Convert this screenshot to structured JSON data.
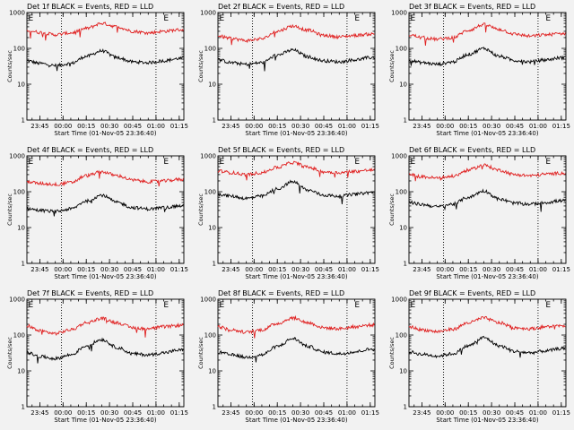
{
  "chart_data": [
    {
      "type": "line",
      "title": "Det 1f BLACK = Events, RED = LLD",
      "ylabel": "Counts/sec",
      "xlabel": "Start Time (01-Nov-05 23:36:40)",
      "yscale": "log",
      "ylim": [
        1,
        1000
      ],
      "y_ticks": [
        "1",
        "10",
        "100",
        "1000"
      ],
      "x_ticks": [
        "23:45",
        "00:00",
        "00:15",
        "00:30",
        "00:45",
        "01:00",
        "01:15"
      ],
      "x_range": [
        "23:36:40",
        "01:18:00"
      ],
      "markers": [
        {
          "label": "E",
          "time": "23:36:40"
        },
        {
          "label": "E",
          "time": "01:04:00"
        }
      ],
      "vlines": [
        "23:59:00",
        "01:00:00"
      ],
      "series": [
        {
          "color": "#000000",
          "x": [
            "23:37",
            "23:45",
            "23:55",
            "00:05",
            "00:15",
            "00:25",
            "00:35",
            "00:45",
            "00:55",
            "01:05",
            "01:15"
          ],
          "values": [
            45,
            38,
            33,
            38,
            60,
            85,
            55,
            42,
            40,
            45,
            52
          ]
        },
        {
          "color": "#e02020",
          "x": [
            "23:37",
            "23:45",
            "23:55",
            "00:05",
            "00:15",
            "00:25",
            "00:35",
            "00:45",
            "00:55",
            "01:05",
            "01:15"
          ],
          "values": [
            320,
            280,
            240,
            270,
            360,
            500,
            400,
            300,
            270,
            300,
            330
          ]
        }
      ]
    },
    {
      "type": "line",
      "title": "Det 2f BLACK = Events, RED = LLD",
      "ylabel": "Counts/sec",
      "xlabel": "Start Time (01-Nov-05 23:36:40)",
      "yscale": "log",
      "ylim": [
        1,
        1000
      ],
      "y_ticks": [
        "1",
        "10",
        "100",
        "1000"
      ],
      "x_ticks": [
        "23:45",
        "00:00",
        "00:15",
        "00:30",
        "00:45",
        "01:00",
        "01:15"
      ],
      "x_range": [
        "23:36:40",
        "01:18:00"
      ],
      "markers": [
        {
          "label": "E",
          "time": "23:36:40"
        },
        {
          "label": "E",
          "time": "01:04:00"
        }
      ],
      "vlines": [
        "23:59:00",
        "01:00:00"
      ],
      "series": [
        {
          "color": "#000000",
          "x": [
            "23:37",
            "23:45",
            "23:55",
            "00:05",
            "00:15",
            "00:25",
            "00:35",
            "00:45",
            "00:55",
            "01:05",
            "01:15"
          ],
          "values": [
            48,
            40,
            36,
            40,
            65,
            90,
            58,
            45,
            42,
            48,
            55
          ]
        },
        {
          "color": "#e02020",
          "x": [
            "23:37",
            "23:45",
            "23:55",
            "00:05",
            "00:15",
            "00:25",
            "00:35",
            "00:45",
            "00:55",
            "01:05",
            "01:15"
          ],
          "values": [
            220,
            190,
            165,
            185,
            300,
            420,
            320,
            230,
            210,
            230,
            250
          ]
        }
      ]
    },
    {
      "type": "line",
      "title": "Det 3f BLACK = Events, RED = LLD",
      "ylabel": "Counts/sec",
      "xlabel": "Start Time (01-Nov-05 23:36:40)",
      "yscale": "log",
      "ylim": [
        1,
        1000
      ],
      "y_ticks": [
        "1",
        "10",
        "100",
        "1000"
      ],
      "x_ticks": [
        "23:45",
        "00:00",
        "00:15",
        "00:30",
        "00:45",
        "01:00",
        "01:15"
      ],
      "x_range": [
        "23:36:40",
        "01:18:00"
      ],
      "markers": [
        {
          "label": "E",
          "time": "23:36:40"
        },
        {
          "label": "E",
          "time": "01:04:00"
        }
      ],
      "vlines": [
        "23:59:00",
        "01:00:00"
      ],
      "series": [
        {
          "color": "#000000",
          "x": [
            "23:37",
            "23:45",
            "23:55",
            "00:05",
            "00:15",
            "00:25",
            "00:35",
            "00:45",
            "00:55",
            "01:05",
            "01:15"
          ],
          "values": [
            46,
            40,
            36,
            42,
            68,
            100,
            60,
            46,
            42,
            48,
            55
          ]
        },
        {
          "color": "#e02020",
          "x": [
            "23:37",
            "23:45",
            "23:55",
            "00:05",
            "00:15",
            "00:25",
            "00:35",
            "00:45",
            "00:55",
            "01:05",
            "01:15"
          ],
          "values": [
            240,
            200,
            180,
            200,
            320,
            460,
            340,
            250,
            220,
            240,
            260
          ]
        }
      ]
    },
    {
      "type": "line",
      "title": "Det 4f BLACK = Events, RED = LLD",
      "ylabel": "Counts/sec",
      "xlabel": "Start Time (01-Nov-05 23:36:40)",
      "yscale": "log",
      "ylim": [
        1,
        1000
      ],
      "y_ticks": [
        "1",
        "10",
        "100",
        "1000"
      ],
      "x_ticks": [
        "23:45",
        "00:00",
        "00:15",
        "00:30",
        "00:45",
        "01:00",
        "01:15"
      ],
      "x_range": [
        "23:36:40",
        "01:18:00"
      ],
      "markers": [
        {
          "label": "E",
          "time": "23:36:40"
        },
        {
          "label": "E",
          "time": "01:04:00"
        }
      ],
      "vlines": [
        "23:59:00",
        "01:00:00"
      ],
      "series": [
        {
          "color": "#000000",
          "x": [
            "23:37",
            "23:45",
            "23:55",
            "00:05",
            "00:15",
            "00:25",
            "00:35",
            "00:45",
            "00:55",
            "01:05",
            "01:15"
          ],
          "values": [
            34,
            30,
            28,
            33,
            55,
            80,
            50,
            36,
            33,
            36,
            40
          ]
        },
        {
          "color": "#e02020",
          "x": [
            "23:37",
            "23:45",
            "23:55",
            "00:05",
            "00:15",
            "00:25",
            "00:35",
            "00:45",
            "00:55",
            "01:05",
            "01:15"
          ],
          "values": [
            190,
            170,
            160,
            180,
            280,
            360,
            280,
            210,
            190,
            200,
            220
          ]
        }
      ]
    },
    {
      "type": "line",
      "title": "Det 5f BLACK = Events, RED = LLD",
      "ylabel": "Counts/sec",
      "xlabel": "Start Time (01-Nov-05 23:36:40)",
      "yscale": "log",
      "ylim": [
        1,
        1000
      ],
      "y_ticks": [
        "1",
        "10",
        "100",
        "1000"
      ],
      "x_ticks": [
        "23:45",
        "00:00",
        "00:15",
        "00:30",
        "00:45",
        "01:00",
        "01:15"
      ],
      "x_range": [
        "23:36:40",
        "01:18:00"
      ],
      "markers": [
        {
          "label": "E",
          "time": "23:36:40"
        },
        {
          "label": "E",
          "time": "01:04:00"
        }
      ],
      "vlines": [
        "23:59:00",
        "01:00:00"
      ],
      "series": [
        {
          "color": "#000000",
          "x": [
            "23:37",
            "23:45",
            "23:55",
            "00:05",
            "00:15",
            "00:25",
            "00:35",
            "00:45",
            "00:55",
            "01:05",
            "01:15"
          ],
          "values": [
            85,
            75,
            65,
            75,
            120,
            190,
            110,
            80,
            75,
            85,
            95
          ]
        },
        {
          "color": "#e02020",
          "x": [
            "23:37",
            "23:45",
            "23:55",
            "00:05",
            "00:15",
            "00:25",
            "00:35",
            "00:45",
            "00:55",
            "01:05",
            "01:15"
          ],
          "values": [
            380,
            340,
            300,
            340,
            480,
            650,
            480,
            360,
            340,
            370,
            400
          ]
        }
      ]
    },
    {
      "type": "line",
      "title": "Det 6f BLACK = Events, RED = LLD",
      "ylabel": "Counts/sec",
      "xlabel": "Start Time (01-Nov-05 23:36:40)",
      "yscale": "log",
      "ylim": [
        1,
        1000
      ],
      "y_ticks": [
        "1",
        "10",
        "100",
        "1000"
      ],
      "x_ticks": [
        "23:45",
        "00:00",
        "00:15",
        "00:30",
        "00:45",
        "01:00",
        "01:15"
      ],
      "x_range": [
        "23:36:40",
        "01:18:00"
      ],
      "markers": [
        {
          "label": "E",
          "time": "23:36:40"
        },
        {
          "label": "E",
          "time": "01:04:00"
        }
      ],
      "vlines": [
        "23:59:00",
        "01:00:00"
      ],
      "series": [
        {
          "color": "#000000",
          "x": [
            "23:37",
            "23:45",
            "23:55",
            "00:05",
            "00:15",
            "00:25",
            "00:35",
            "00:45",
            "00:55",
            "01:05",
            "01:15"
          ],
          "values": [
            50,
            44,
            38,
            45,
            70,
            105,
            62,
            48,
            45,
            50,
            56
          ]
        },
        {
          "color": "#e02020",
          "x": [
            "23:37",
            "23:45",
            "23:55",
            "00:05",
            "00:15",
            "00:25",
            "00:35",
            "00:45",
            "00:55",
            "01:05",
            "01:15"
          ],
          "values": [
            300,
            260,
            240,
            270,
            400,
            550,
            400,
            300,
            280,
            310,
            330
          ]
        }
      ]
    },
    {
      "type": "line",
      "title": "Det 7f BLACK = Events, RED = LLD",
      "ylabel": "Counts/sec",
      "xlabel": "Start Time (01-Nov-05 23:36:40)",
      "yscale": "log",
      "ylim": [
        1,
        1000
      ],
      "y_ticks": [
        "1",
        "10",
        "100",
        "1000"
      ],
      "x_ticks": [
        "23:45",
        "00:00",
        "00:15",
        "00:30",
        "00:45",
        "01:00",
        "01:15"
      ],
      "x_range": [
        "23:36:40",
        "01:18:00"
      ],
      "markers": [
        {
          "label": "E",
          "time": "23:36:40"
        },
        {
          "label": "E",
          "time": "01:04:00"
        }
      ],
      "vlines": [
        "23:59:00",
        "01:00:00"
      ],
      "series": [
        {
          "color": "#000000",
          "x": [
            "23:37",
            "23:45",
            "23:55",
            "00:05",
            "00:15",
            "00:25",
            "00:35",
            "00:45",
            "00:55",
            "01:05",
            "01:15"
          ],
          "values": [
            32,
            25,
            22,
            28,
            50,
            75,
            45,
            30,
            28,
            32,
            38
          ]
        },
        {
          "color": "#e02020",
          "x": [
            "23:37",
            "23:45",
            "23:55",
            "00:05",
            "00:15",
            "00:25",
            "00:35",
            "00:45",
            "00:55",
            "01:05",
            "01:15"
          ],
          "values": [
            180,
            130,
            110,
            140,
            220,
            290,
            220,
            160,
            150,
            170,
            185
          ]
        }
      ]
    },
    {
      "type": "line",
      "title": "Det 8f BLACK = Events, RED = LLD",
      "ylabel": "Counts/sec",
      "xlabel": "Start Time (01-Nov-05 23:36:40)",
      "yscale": "log",
      "ylim": [
        1,
        1000
      ],
      "y_ticks": [
        "1",
        "10",
        "100",
        "1000"
      ],
      "x_ticks": [
        "23:45",
        "00:00",
        "00:15",
        "00:30",
        "00:45",
        "01:00",
        "01:15"
      ],
      "x_range": [
        "23:36:40",
        "01:18:00"
      ],
      "markers": [
        {
          "label": "E",
          "time": "23:36:40"
        },
        {
          "label": "E",
          "time": "01:04:00"
        }
      ],
      "vlines": [
        "23:59:00",
        "01:00:00"
      ],
      "series": [
        {
          "color": "#000000",
          "x": [
            "23:37",
            "23:45",
            "23:55",
            "00:05",
            "00:15",
            "00:25",
            "00:35",
            "00:45",
            "00:55",
            "01:05",
            "01:15"
          ],
          "values": [
            33,
            28,
            24,
            28,
            48,
            80,
            48,
            33,
            30,
            34,
            40
          ]
        },
        {
          "color": "#e02020",
          "x": [
            "23:37",
            "23:45",
            "23:55",
            "00:05",
            "00:15",
            "00:25",
            "00:35",
            "00:45",
            "00:55",
            "01:05",
            "01:15"
          ],
          "values": [
            170,
            140,
            120,
            140,
            210,
            300,
            220,
            160,
            150,
            170,
            190
          ]
        }
      ]
    },
    {
      "type": "line",
      "title": "Det 9f BLACK = Events, RED = LLD",
      "ylabel": "Counts/sec",
      "xlabel": "Start Time (01-Nov-05 23:36:40)",
      "yscale": "log",
      "ylim": [
        1,
        1000
      ],
      "y_ticks": [
        "1",
        "10",
        "100",
        "1000"
      ],
      "x_ticks": [
        "23:45",
        "00:00",
        "00:15",
        "00:30",
        "00:45",
        "01:00",
        "01:15"
      ],
      "x_range": [
        "23:36:40",
        "01:18:00"
      ],
      "markers": [
        {
          "label": "E",
          "time": "23:36:40"
        },
        {
          "label": "E",
          "time": "01:04:00"
        }
      ],
      "vlines": [
        "23:59:00",
        "01:00:00"
      ],
      "series": [
        {
          "color": "#000000",
          "x": [
            "23:37",
            "23:45",
            "23:55",
            "00:05",
            "00:15",
            "00:25",
            "00:35",
            "00:45",
            "00:55",
            "01:05",
            "01:15"
          ],
          "values": [
            34,
            29,
            26,
            30,
            50,
            85,
            50,
            35,
            32,
            36,
            42
          ]
        },
        {
          "color": "#e02020",
          "x": [
            "23:37",
            "23:45",
            "23:55",
            "00:05",
            "00:15",
            "00:25",
            "00:35",
            "00:45",
            "00:55",
            "01:05",
            "01:15"
          ],
          "values": [
            170,
            140,
            125,
            145,
            220,
            300,
            220,
            160,
            150,
            170,
            185
          ]
        }
      ]
    }
  ]
}
